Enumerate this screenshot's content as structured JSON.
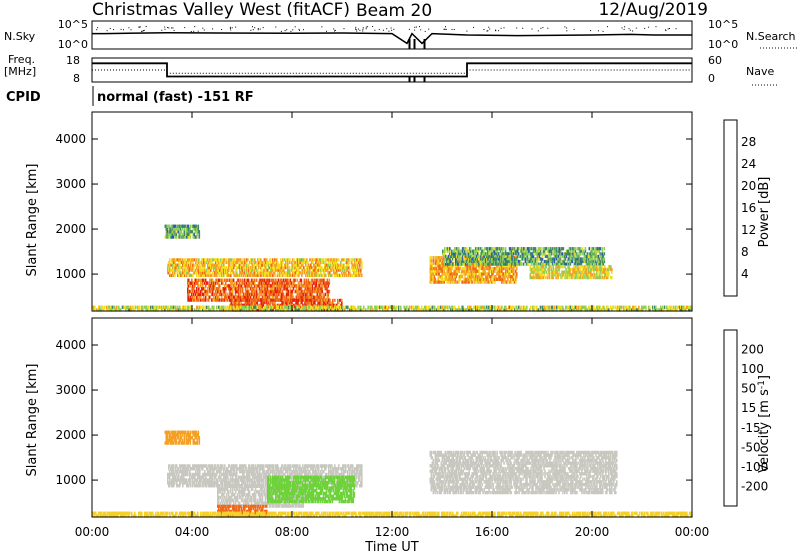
{
  "header": {
    "site": "Christmas Valley West (fitACF)",
    "beam": "Beam 20",
    "date": "12/Aug/2019"
  },
  "nsky_panel": {
    "left_label": "N.Sky",
    "right_label": "N.Search",
    "left_ticks": [
      "10^5",
      "10^0"
    ],
    "right_ticks": [
      "10^5",
      "10^0"
    ]
  },
  "freq_panel": {
    "left_label": "Freq.",
    "left_unit": "[MHz]",
    "right_label": "Nave",
    "left_ticks": [
      "18",
      "8"
    ],
    "right_ticks": [
      "60",
      "0"
    ]
  },
  "cpid": {
    "label": "CPID",
    "value": "normal (fast) -151 RF"
  },
  "time_axis": {
    "label": "Time UT",
    "ticks": [
      "00:00",
      "04:00",
      "08:00",
      "12:00",
      "16:00",
      "20:00",
      "00:00"
    ]
  },
  "power_panel": {
    "ylabel": "Slant Range [km]",
    "yticks": [
      "1000",
      "2000",
      "3000",
      "4000"
    ],
    "colorbar_label": "Power [dB]",
    "colorbar_ticks": [
      "4",
      "8",
      "12",
      "16",
      "20",
      "24",
      "28"
    ],
    "colors": [
      "#1a2bd8",
      "#2b5aa8",
      "#3d8a63",
      "#8fcf5a",
      "#f2dc1e",
      "#f5a023",
      "#f06a18",
      "#e52010"
    ]
  },
  "velocity_panel": {
    "ylabel": "Slant Range [km]",
    "yticks": [
      "1000",
      "2000",
      "3000",
      "4000"
    ],
    "colorbar_label": "Velocity [m s",
    "colorbar_label_sup": "-1",
    "colorbar_label_end": "]",
    "colorbar_ticks": [
      "200",
      "100",
      "50",
      "15",
      "-15",
      "-50",
      "-100",
      "-200"
    ],
    "colors": [
      "#2233cc",
      "#2f6d8e",
      "#3e9a4c",
      "#6ed23a",
      "#c8c8c0",
      "#f5d028",
      "#f5a023",
      "#f06a18",
      "#e52010"
    ]
  },
  "chart_data": [
    {
      "type": "line",
      "title": "N.Sky / N.Search",
      "x_hours": [
        0,
        0.5,
        3,
        5,
        8,
        10,
        12,
        12.6,
        12.8,
        13.2,
        13.6,
        15,
        17,
        20,
        21.5,
        22.5,
        24
      ],
      "nsky_level": [
        0.55,
        0.55,
        0.58,
        0.57,
        0.56,
        0.57,
        0.55,
        0.2,
        0.55,
        0.2,
        0.55,
        0.5,
        0.48,
        0.5,
        0.52,
        0.5,
        0.5
      ],
      "series": [
        {
          "values": [
            0.55,
            0.55,
            0.58,
            0.57,
            0.56,
            0.57,
            0.55,
            0.2,
            0.55,
            0.2,
            0.55,
            0.5,
            0.48,
            0.5,
            0.52,
            0.5,
            0.5
          ]
        }
      ]
    },
    {
      "type": "line",
      "title": "Freq. / Nave",
      "freq_mhz": {
        "x_hours": [
          0,
          3,
          3,
          15,
          15,
          24
        ],
        "y": [
          15.8,
          15.8,
          10.3,
          10.3,
          15.8,
          15.8
        ]
      },
      "nave": {
        "x_hours": [
          0,
          3,
          3,
          15,
          15,
          24
        ],
        "y": [
          30,
          30,
          22,
          22,
          30,
          30
        ]
      }
    },
    {
      "type": "heatmap",
      "title": "Power [dB]",
      "x_range_hours": [
        0,
        24
      ],
      "y_range_km": [
        180,
        4600
      ],
      "regions": [
        {
          "t0": 2.9,
          "t1": 4.3,
          "r0": 1800,
          "r1": 2100,
          "value": 12
        },
        {
          "t0": 3.0,
          "t1": 10.8,
          "r0": 950,
          "r1": 1350,
          "value": 20
        },
        {
          "t0": 3.8,
          "t1": 9.5,
          "r0": 400,
          "r1": 900,
          "value": 26
        },
        {
          "t0": 5.5,
          "t1": 10.0,
          "r0": 180,
          "r1": 450,
          "value": 28
        },
        {
          "t0": 13.5,
          "t1": 17.0,
          "r0": 800,
          "r1": 1400,
          "value": 22
        },
        {
          "t0": 14.0,
          "t1": 20.5,
          "r0": 1200,
          "r1": 1600,
          "value": 12
        },
        {
          "t0": 17.5,
          "t1": 20.8,
          "r0": 900,
          "r1": 1200,
          "value": 18
        },
        {
          "t0": 0.0,
          "t1": 24.0,
          "r0": 180,
          "r1": 300,
          "value": 16
        }
      ]
    },
    {
      "type": "heatmap",
      "title": "Velocity",
      "x_range_hours": [
        0,
        24
      ],
      "y_range_km": [
        180,
        4600
      ],
      "regions": [
        {
          "t0": 2.9,
          "t1": 4.3,
          "r0": 1800,
          "r1": 2100,
          "value": -60
        },
        {
          "t0": 3.0,
          "t1": 10.8,
          "r0": 850,
          "r1": 1350,
          "value": 0
        },
        {
          "t0": 5.0,
          "t1": 8.5,
          "r0": 400,
          "r1": 900,
          "value": 0
        },
        {
          "t0": 5.0,
          "t1": 7.0,
          "r0": 180,
          "r1": 450,
          "value": -120
        },
        {
          "t0": 7.0,
          "t1": 10.5,
          "r0": 500,
          "r1": 1100,
          "value": 40
        },
        {
          "t0": 13.5,
          "t1": 21.0,
          "r0": 700,
          "r1": 1650,
          "value": 0
        },
        {
          "t0": 0.0,
          "t1": 24.0,
          "r0": 180,
          "r1": 300,
          "value": -40
        }
      ]
    }
  ]
}
